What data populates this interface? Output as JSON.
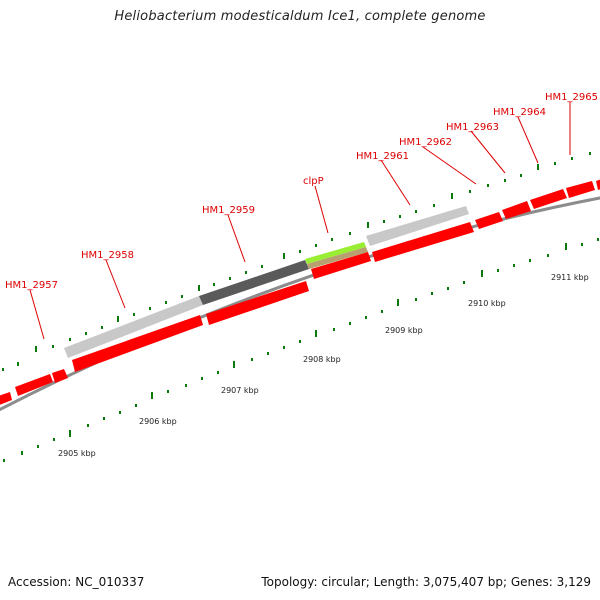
{
  "title": "Heliobacterium modesticaldum Ice1, complete genome",
  "footer": {
    "accession": "Accession: NC_010337",
    "summary": "Topology: circular; Length: 3,075,407 bp; Genes: 3,129"
  },
  "colors": {
    "forward_cds": "#ff0000",
    "reverse_gene_light": "#c8c8c8",
    "reverse_gene_dark": "#5a5a5a",
    "highlight_clpP": "#99ee33",
    "highlight_clpP_lower": "#b8a070",
    "backbone": "#8c8c8c",
    "tick": "#0a7a0a",
    "label": "#dd0000"
  },
  "gene_labels": [
    "HM1_2957",
    "HM1_2958",
    "HM1_2959",
    "clpP",
    "HM1_2961",
    "HM1_2962",
    "HM1_2963",
    "HM1_2964",
    "HM1_2965"
  ],
  "kbp_labels": [
    "2905 kbp",
    "2906 kbp",
    "2907 kbp",
    "2908 kbp",
    "2909 kbp",
    "2910 kbp",
    "2911 kbp"
  ]
}
